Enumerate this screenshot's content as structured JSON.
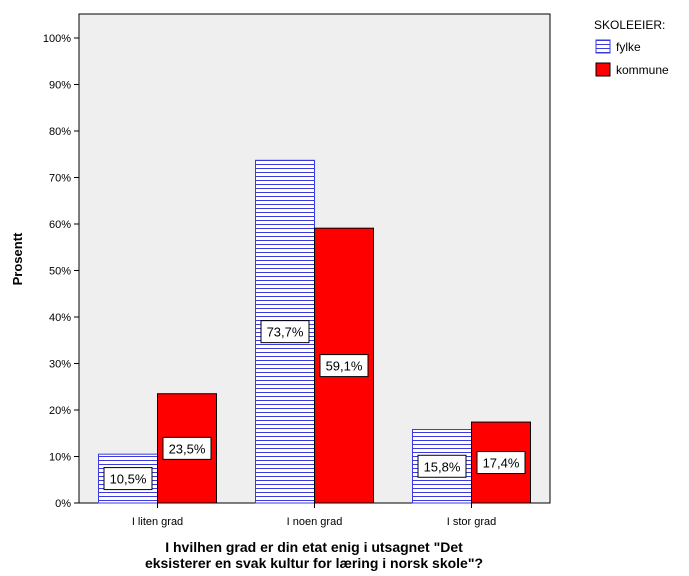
{
  "chart_data": {
    "type": "bar",
    "ylabel": "Prosentt",
    "xlabel_lines": [
      "I hvilhen grad er din etat enig i utsagnet \"Det",
      "eksisterer en svak kultur for læring i norsk skole\"?"
    ],
    "categories": [
      "I liten grad",
      "I noen grad",
      "I stor grad"
    ],
    "ylim": [
      0,
      100
    ],
    "yticks": [
      0,
      10,
      20,
      30,
      40,
      50,
      60,
      70,
      80,
      90,
      100
    ],
    "ytick_labels": [
      "0%",
      "10%",
      "20%",
      "30%",
      "40%",
      "50%",
      "60%",
      "70%",
      "80%",
      "90%",
      "100%"
    ],
    "grid": false,
    "legend": {
      "title": "SKOLEEIER:",
      "position": "top-right"
    },
    "series": [
      {
        "name": "fylke",
        "values": [
          10.5,
          73.7,
          15.8
        ],
        "labels": [
          "10,5%",
          "73,7%",
          "15,8%"
        ],
        "fill": "#ffffff",
        "line_color": "#3a3ae0",
        "pattern": "horizontal-lines"
      },
      {
        "name": "kommune",
        "values": [
          23.5,
          59.1,
          17.4
        ],
        "labels": [
          "23,5%",
          "59,1%",
          "17,4%"
        ],
        "fill": "#ff0000",
        "line_color": "#000000",
        "pattern": "solid"
      }
    ],
    "plot_background": "#efefef"
  }
}
